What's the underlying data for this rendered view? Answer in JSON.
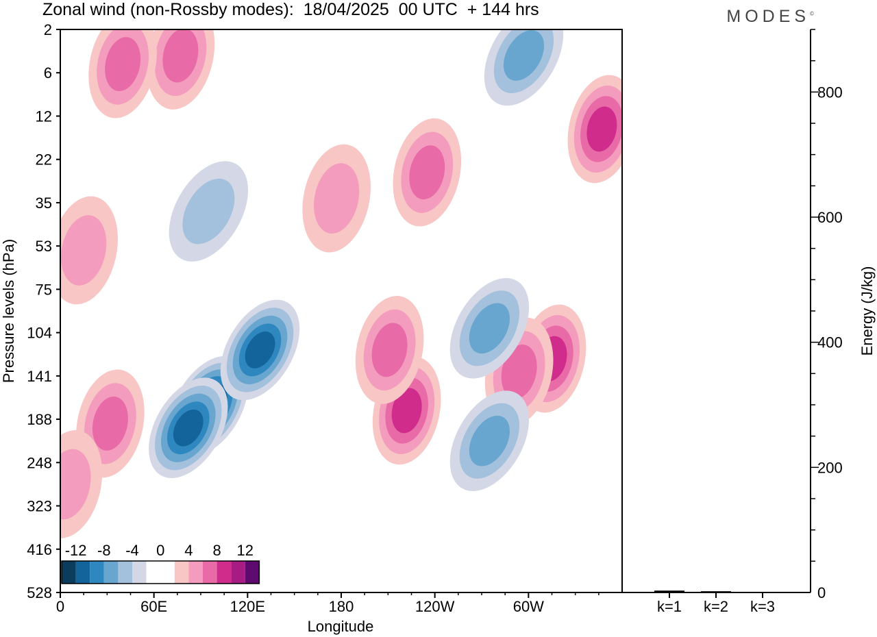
{
  "title": "Zonal wind (non-Rossby modes):  18/04/2025  00 UTC  + 144 hrs",
  "brand": "MODES",
  "brand_mark": "©",
  "chart_data": [
    {
      "type": "heatmap",
      "xlabel": "Longitude",
      "ylabel": "Pressure levels (hPa)",
      "x_ticks": [
        "0",
        "60E",
        "120E",
        "180",
        "120W",
        "60W"
      ],
      "y_ticks": [
        "2",
        "6",
        "12",
        "22",
        "35",
        "53",
        "75",
        "104",
        "141",
        "188",
        "248",
        "323",
        "416",
        "528"
      ],
      "y_scale": "level-index (top = 2 hPa, bottom = 528 hPa)",
      "colorbar": {
        "labels": [
          "-12",
          "-8",
          "-4",
          "0",
          "4",
          "8",
          "12"
        ],
        "colors": [
          "#0c3c5c",
          "#14649c",
          "#2f87c0",
          "#69a6cf",
          "#a3c0dc",
          "#d4d8e6",
          "#ffffff",
          "#ffffff",
          "#f8c6c4",
          "#f39cbd",
          "#e86aa6",
          "#cf2c8c",
          "#a71c83",
          "#5e0a6e"
        ]
      },
      "features": [
        {
          "lon": 95,
          "level": 8.7,
          "value": -12
        },
        {
          "lon": 82,
          "level": 9.2,
          "value": -10
        },
        {
          "lon": 128,
          "level": 7.4,
          "value": -9
        },
        {
          "lon": 32,
          "level": 9.1,
          "value": 6
        },
        {
          "lon": 222,
          "level": 8.8,
          "value": 7
        },
        {
          "lon": 211,
          "level": 7.4,
          "value": 5
        },
        {
          "lon": 315,
          "level": 7.6,
          "value": 7
        },
        {
          "lon": 294,
          "level": 7.9,
          "value": 6
        },
        {
          "lon": 275,
          "level": 6.9,
          "value": -5
        },
        {
          "lon": 275,
          "level": 9.5,
          "value": -5
        },
        {
          "lon": 347,
          "level": 2.3,
          "value": 7
        },
        {
          "lon": 297,
          "level": 0.6,
          "value": -5
        },
        {
          "lon": 235,
          "level": 3.3,
          "value": 6
        },
        {
          "lon": 177,
          "level": 3.9,
          "value": 4
        },
        {
          "lon": 77,
          "level": 0.6,
          "value": 5
        },
        {
          "lon": 40,
          "level": 0.8,
          "value": 5
        },
        {
          "lon": 15,
          "level": 5.1,
          "value": 4
        },
        {
          "lon": 95,
          "level": 4.2,
          "value": -4
        },
        {
          "lon": 5,
          "level": 10.5,
          "value": 4
        }
      ]
    },
    {
      "type": "bar",
      "categories": [
        "k=1",
        "k=2",
        "k=3"
      ],
      "values": [
        3,
        2,
        1
      ],
      "ylabel": "Energy (J/kg)",
      "ylim": [
        0,
        900
      ],
      "y_ticks": [
        0,
        200,
        400,
        600,
        800
      ]
    }
  ]
}
